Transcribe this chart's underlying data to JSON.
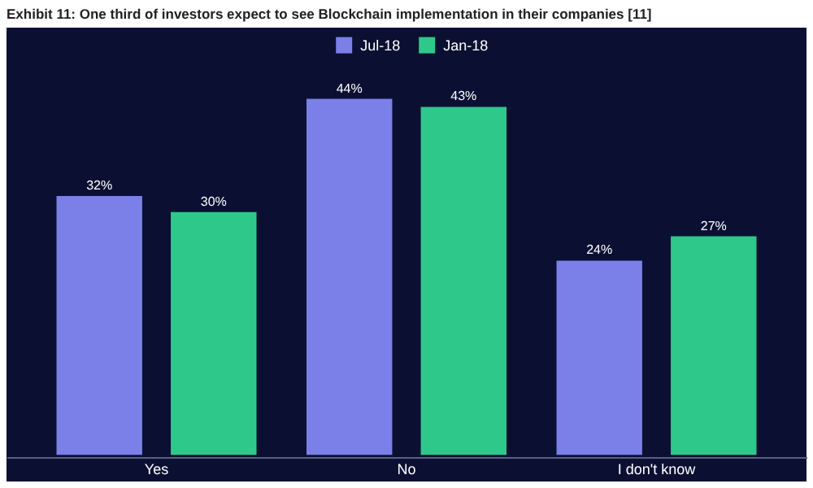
{
  "chart_data": {
    "type": "bar",
    "title": "Exhibit 11: One third of investors expect to see Blockchain implementation in their companies [11]",
    "categories": [
      "Yes",
      "No",
      "I don't know"
    ],
    "series": [
      {
        "name": "Jul-18",
        "color": "#7b7fe8",
        "values": [
          32,
          44,
          24
        ],
        "value_labels": [
          "32%",
          "44%",
          "24%"
        ]
      },
      {
        "name": "Jan-18",
        "color": "#2ec98a",
        "values": [
          30,
          43,
          27
        ],
        "value_labels": [
          "30%",
          "43%",
          "27%"
        ]
      }
    ],
    "legend": "top",
    "grid": false
  }
}
